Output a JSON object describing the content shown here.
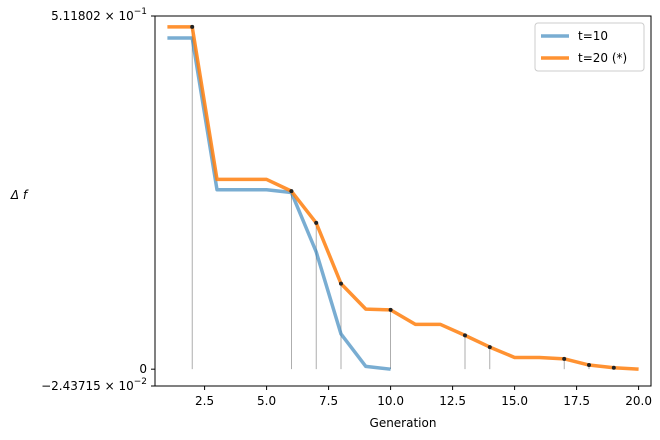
{
  "chart_data": {
    "type": "line",
    "xlabel": "Generation",
    "ylabel": "Δ f",
    "xlim": [
      0.5,
      20.5
    ],
    "ylim": [
      -0.0243715,
      0.511802
    ],
    "y_scale": "linear",
    "grid": false,
    "legend_position": "top-right",
    "x_ticks": [
      2.5,
      5.0,
      7.5,
      10.0,
      12.5,
      15.0,
      17.5,
      20.0
    ],
    "x_tick_labels": [
      "2.5",
      "5.0",
      "7.5",
      "10.0",
      "12.5",
      "15.0",
      "17.5",
      "20.0"
    ],
    "y_tick_labels": [
      {
        "value": 0.511802,
        "mantissa": "5.11802",
        "exponent": "−1"
      },
      {
        "value": 0,
        "mantissa": "0",
        "exponent": ""
      },
      {
        "value": -0.0243715,
        "mantissa": "−2.43715",
        "exponent": "−2"
      }
    ],
    "series": [
      {
        "name": "t=10",
        "color": "#1f77b4",
        "x": [
          1,
          2,
          3,
          4,
          5,
          6,
          7,
          8,
          9,
          10
        ],
        "values": [
          0.48,
          0.48,
          0.26,
          0.26,
          0.26,
          0.256,
          0.17,
          0.051,
          0.004,
          0.0
        ]
      },
      {
        "name": "t=20 (*)",
        "color": "#ff7f0e",
        "x": [
          1,
          2,
          3,
          4,
          5,
          6,
          7,
          8,
          9,
          10,
          11,
          12,
          13,
          14,
          15,
          16,
          17,
          18,
          19,
          20
        ],
        "values": [
          0.496,
          0.496,
          0.275,
          0.275,
          0.275,
          0.258,
          0.212,
          0.124,
          0.087,
          0.086,
          0.065,
          0.065,
          0.049,
          0.032,
          0.017,
          0.017,
          0.015,
          0.006,
          0.002,
          0.0
        ]
      }
    ],
    "markers": [
      {
        "x": 2,
        "y": 0.496
      },
      {
        "x": 6,
        "y": 0.258
      },
      {
        "x": 7,
        "y": 0.212
      },
      {
        "x": 8,
        "y": 0.124
      },
      {
        "x": 10,
        "y": 0.086
      },
      {
        "x": 13,
        "y": 0.049
      },
      {
        "x": 14,
        "y": 0.032
      },
      {
        "x": 17,
        "y": 0.015
      },
      {
        "x": 18,
        "y": 0.006
      },
      {
        "x": 19,
        "y": 0.002
      }
    ]
  }
}
